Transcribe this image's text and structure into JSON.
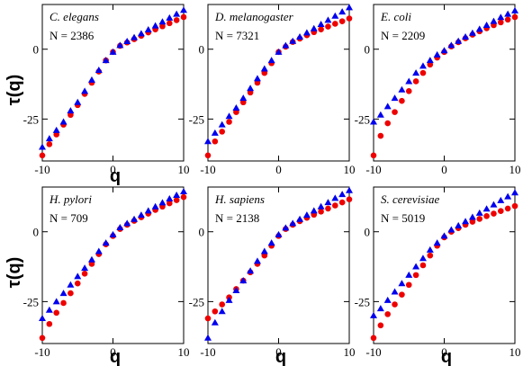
{
  "figure": {
    "y_axis_label": "τ(q)",
    "x_axis_label": "q"
  },
  "chart_data": [
    {
      "type": "scatter",
      "title": "C. elegans",
      "annotation": "N = 2386",
      "xlabel": "q",
      "ylabel": "τ(q)",
      "xlim": [
        -10,
        10
      ],
      "ylim": [
        -40,
        16
      ],
      "xticks": [
        -10,
        0,
        10
      ],
      "yticks": [
        -25,
        0
      ],
      "series": [
        {
          "marker": "circle",
          "color": "#ee0000",
          "x": [
            -10,
            -9,
            -8,
            -7,
            -6,
            -5,
            -4,
            -3,
            -2,
            -1,
            0,
            1,
            2,
            3,
            4,
            5,
            6,
            7,
            8,
            9,
            10
          ],
          "y": [
            -38,
            -34,
            -30.5,
            -27,
            -23.5,
            -20,
            -16,
            -12,
            -8,
            -4,
            -1,
            1.2,
            2.4,
            3.6,
            4.8,
            6,
            7.1,
            8.2,
            9.3,
            10.4,
            11.5
          ]
        },
        {
          "marker": "triangle",
          "color": "#0000ee",
          "x": [
            -10,
            -9,
            -8,
            -7,
            -6,
            -5,
            -4,
            -3,
            -2,
            -1,
            0,
            1,
            2,
            3,
            4,
            5,
            6,
            7,
            8,
            9,
            10
          ],
          "y": [
            -35,
            -32,
            -29,
            -26,
            -22,
            -19,
            -15,
            -11,
            -7.5,
            -4,
            -1,
            1.4,
            2.8,
            4.2,
            5.6,
            7,
            8.4,
            9.8,
            11.2,
            12.6,
            14
          ]
        }
      ]
    },
    {
      "type": "scatter",
      "title": "D. melanogaster",
      "annotation": "N = 7321",
      "xlabel": "q",
      "ylabel": "τ(q)",
      "xlim": [
        -10,
        10
      ],
      "ylim": [
        -40,
        16
      ],
      "xticks": [
        -10,
        0,
        10
      ],
      "yticks": [
        -25,
        0
      ],
      "series": [
        {
          "marker": "circle",
          "color": "#ee0000",
          "x": [
            -10,
            -9,
            -8,
            -7,
            -6,
            -5,
            -4,
            -3,
            -2,
            -1,
            0,
            1,
            2,
            3,
            4,
            5,
            6,
            7,
            8,
            9,
            10
          ],
          "y": [
            -38,
            -33,
            -29.5,
            -26,
            -22.5,
            -19,
            -15.5,
            -12,
            -8.5,
            -5,
            -1,
            0.9,
            2.6,
            3.8,
            5,
            6.1,
            7.1,
            8.1,
            9.1,
            10,
            11
          ]
        },
        {
          "marker": "triangle",
          "color": "#0000ee",
          "x": [
            -10,
            -9,
            -8,
            -7,
            -6,
            -5,
            -4,
            -3,
            -2,
            -1,
            0,
            1,
            2,
            3,
            4,
            5,
            6,
            7,
            8,
            9,
            10
          ],
          "y": [
            -33,
            -30,
            -27,
            -24,
            -21,
            -17.5,
            -14,
            -10.5,
            -7,
            -4,
            -1,
            1.3,
            2.9,
            4.4,
            5.9,
            7.4,
            8.9,
            10.4,
            11.9,
            13.4,
            14.9
          ]
        }
      ]
    },
    {
      "type": "scatter",
      "title": "E. coli",
      "annotation": "N = 2209",
      "xlabel": "q",
      "ylabel": "τ(q)",
      "xlim": [
        -10,
        10
      ],
      "ylim": [
        -40,
        16
      ],
      "xticks": [
        -10,
        0,
        10
      ],
      "yticks": [
        -25,
        0
      ],
      "series": [
        {
          "marker": "circle",
          "color": "#ee0000",
          "x": [
            -10,
            -9,
            -8,
            -7,
            -6,
            -5,
            -4,
            -3,
            -2,
            -1,
            0,
            1,
            2,
            3,
            4,
            5,
            6,
            7,
            8,
            9,
            10
          ],
          "y": [
            -38,
            -31,
            -26.5,
            -22.5,
            -18.5,
            -15,
            -11.5,
            -8.5,
            -5.5,
            -3,
            -1,
            1,
            2.5,
            3.9,
            5.2,
            6.4,
            7.5,
            8.6,
            9.6,
            10.6,
            11.5
          ]
        },
        {
          "marker": "triangle",
          "color": "#0000ee",
          "x": [
            -10,
            -9,
            -8,
            -7,
            -6,
            -5,
            -4,
            -3,
            -2,
            -1,
            0,
            1,
            2,
            3,
            4,
            5,
            6,
            7,
            8,
            9,
            10
          ],
          "y": [
            -26,
            -23.5,
            -20.5,
            -17.5,
            -14.5,
            -11.5,
            -8.5,
            -6,
            -4,
            -2,
            -0.5,
            1.4,
            2.9,
            4.4,
            5.8,
            7.2,
            8.6,
            10,
            11.4,
            12.6,
            13.8
          ]
        }
      ]
    },
    {
      "type": "scatter",
      "title": "H. pylori",
      "annotation": "N = 709",
      "xlabel": "q",
      "ylabel": "τ(q)",
      "xlim": [
        -10,
        10
      ],
      "ylim": [
        -40,
        16
      ],
      "xticks": [
        -10,
        0,
        10
      ],
      "yticks": [
        -25,
        0
      ],
      "series": [
        {
          "marker": "circle",
          "color": "#ee0000",
          "x": [
            -10,
            -9,
            -8,
            -7,
            -6,
            -5,
            -4,
            -3,
            -2,
            -1,
            0,
            1,
            2,
            3,
            4,
            5,
            6,
            7,
            8,
            9,
            10
          ],
          "y": [
            -38,
            -33,
            -29,
            -25.5,
            -22,
            -18.5,
            -15,
            -11.5,
            -8,
            -4.5,
            -1.5,
            1,
            2.5,
            3.9,
            5.2,
            6.5,
            7.8,
            9,
            10.2,
            11.3,
            12.4
          ]
        },
        {
          "marker": "triangle",
          "color": "#0000ee",
          "x": [
            -10,
            -9,
            -8,
            -7,
            -6,
            -5,
            -4,
            -3,
            -2,
            -1,
            0,
            1,
            2,
            3,
            4,
            5,
            6,
            7,
            8,
            9,
            10
          ],
          "y": [
            -31,
            -28,
            -25,
            -22,
            -19,
            -16,
            -13,
            -10,
            -7,
            -4,
            -1,
            1.5,
            3,
            4.5,
            6,
            7.5,
            9,
            10.4,
            11.8,
            13.1,
            14.4
          ]
        }
      ]
    },
    {
      "type": "scatter",
      "title": "H. sapiens",
      "annotation": "N = 2138",
      "xlabel": "q",
      "ylabel": "τ(q)",
      "xlim": [
        -10,
        10
      ],
      "ylim": [
        -40,
        16
      ],
      "xticks": [
        -10,
        0,
        10
      ],
      "yticks": [
        -25,
        0
      ],
      "series": [
        {
          "marker": "circle",
          "color": "#ee0000",
          "x": [
            -10,
            -9,
            -8,
            -7,
            -6,
            -5,
            -4,
            -3,
            -2,
            -1,
            0,
            1,
            2,
            3,
            4,
            5,
            6,
            7,
            8,
            9,
            10
          ],
          "y": [
            -31,
            -28.5,
            -26,
            -23.5,
            -20.5,
            -17.5,
            -14.5,
            -11.5,
            -8.5,
            -5,
            -1.5,
            1,
            2.5,
            3.8,
            5,
            6.1,
            7.2,
            8.3,
            9.4,
            10.5,
            11.6
          ]
        },
        {
          "marker": "triangle",
          "color": "#0000ee",
          "x": [
            -10,
            -9,
            -8,
            -7,
            -6,
            -5,
            -4,
            -3,
            -2,
            -1,
            0,
            1,
            2,
            3,
            4,
            5,
            6,
            7,
            8,
            9,
            10
          ],
          "y": [
            -38,
            -32.5,
            -28.5,
            -24.5,
            -21,
            -17.5,
            -14,
            -10.5,
            -7,
            -4,
            -1,
            1.4,
            3,
            4.5,
            6,
            7.5,
            9,
            10.5,
            12,
            13.4,
            14.8
          ]
        }
      ]
    },
    {
      "type": "scatter",
      "title": "S. cerevisiae",
      "annotation": "N = 5019",
      "xlabel": "q",
      "ylabel": "τ(q)",
      "xlim": [
        -10,
        10
      ],
      "ylim": [
        -40,
        16
      ],
      "xticks": [
        -10,
        0,
        10
      ],
      "yticks": [
        -25,
        0
      ],
      "series": [
        {
          "marker": "circle",
          "color": "#ee0000",
          "x": [
            -10,
            -9,
            -8,
            -7,
            -6,
            -5,
            -4,
            -3,
            -2,
            -1,
            0,
            1,
            2,
            3,
            4,
            5,
            6,
            7,
            8,
            9,
            10
          ],
          "y": [
            -38,
            -33.5,
            -29.5,
            -26,
            -22.5,
            -19,
            -15.5,
            -12,
            -8.5,
            -5,
            -2,
            0,
            1.3,
            2.5,
            3.6,
            4.6,
            5.6,
            6.5,
            7.4,
            8.3,
            9.2
          ]
        },
        {
          "marker": "triangle",
          "color": "#0000ee",
          "x": [
            -10,
            -9,
            -8,
            -7,
            -6,
            -5,
            -4,
            -3,
            -2,
            -1,
            0,
            1,
            2,
            3,
            4,
            5,
            6,
            7,
            8,
            9,
            10
          ],
          "y": [
            -30,
            -27.5,
            -24.5,
            -21.5,
            -18.5,
            -15.5,
            -12.5,
            -9.5,
            -6.5,
            -4,
            -1.5,
            0.7,
            2.2,
            3.7,
            5.2,
            6.7,
            8.2,
            9.7,
            11.2,
            12.6,
            14
          ]
        }
      ]
    }
  ]
}
